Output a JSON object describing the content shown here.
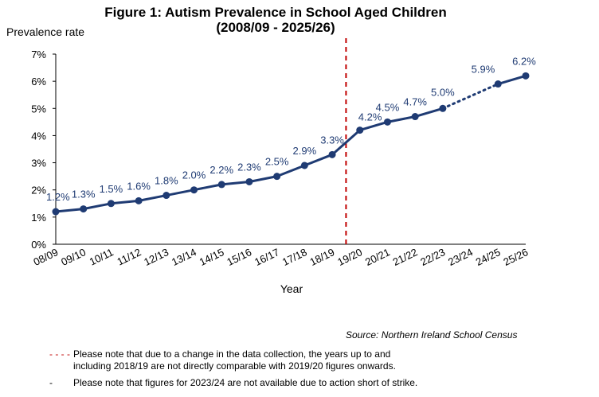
{
  "chart_data": {
    "type": "line",
    "title": "Figure 1: Autism Prevalence in School Aged Children",
    "subtitle": "(2008/09 - 2025/26)",
    "ylabel": "Prevalence rate",
    "xlabel": "Year",
    "categories": [
      "08/09",
      "09/10",
      "10/11",
      "11/12",
      "12/13",
      "13/14",
      "14/15",
      "15/16",
      "16/17",
      "17/18",
      "18/19",
      "19/20",
      "20/21",
      "21/22",
      "22/23",
      "23/24",
      "24/25",
      "25/26"
    ],
    "values": [
      1.2,
      1.3,
      1.5,
      1.6,
      1.8,
      2.0,
      2.2,
      2.3,
      2.5,
      2.9,
      3.3,
      4.2,
      4.5,
      4.7,
      5.0,
      null,
      5.9,
      6.2
    ],
    "data_labels": [
      "1.2%",
      "1.3%",
      "1.5%",
      "1.6%",
      "1.8%",
      "2.0%",
      "2.2%",
      "2.3%",
      "2.5%",
      "2.9%",
      "3.3%",
      "4.2%",
      "4.5%",
      "4.7%",
      "5.0%",
      "",
      "5.9%",
      "6.2%"
    ],
    "yticks": [
      "0%",
      "1%",
      "2%",
      "3%",
      "4%",
      "5%",
      "6%",
      "7%"
    ],
    "ylim": [
      0,
      7
    ],
    "grid": false,
    "legend": "none",
    "line_color": "#1f3b73",
    "break_line_color": "#c00000",
    "break_between": [
      "18/19",
      "19/20"
    ],
    "dotted_segment": [
      "22/23",
      "24/25"
    ]
  },
  "source": "Source: Northern Ireland School Census",
  "notes": [
    {
      "bullet": "- - - -",
      "text": "Please note that due to a change in the data collection, the years up to and including 2018/19 are not directly comparable with 2019/20 figures onwards."
    },
    {
      "bullet": "-",
      "text": "Please note that figures for 2023/24 are not available due to action short of strike."
    }
  ]
}
